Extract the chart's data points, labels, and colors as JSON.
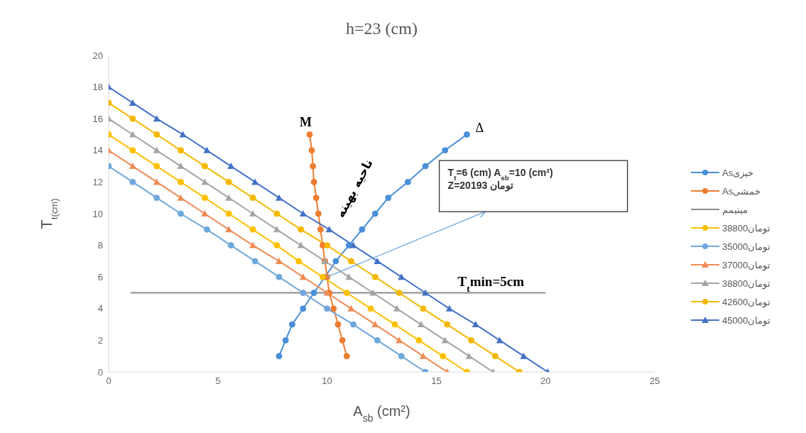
{
  "chart_data": {
    "type": "line",
    "title": "h=23 (cm)",
    "xlabel": "A$_{sb}$ (cm²)",
    "ylabel": "T$_{t(cm)}$",
    "xlim": [
      0,
      25
    ],
    "xticks": [
      0,
      5,
      10,
      15,
      20,
      25
    ],
    "ylim": [
      0,
      20
    ],
    "yticks": [
      0,
      2,
      4,
      6,
      8,
      10,
      12,
      14,
      16,
      18,
      20
    ],
    "grid": false,
    "legend": "right",
    "series": [
      {
        "name": "Asخیزی",
        "color": "#4a8fd8",
        "marker": "circle",
        "x": [
          7.8,
          8.1,
          8.4,
          8.9,
          9.4,
          9.9,
          10.4,
          11.0,
          11.6,
          12.2,
          12.8,
          13.7,
          14.5,
          15.4,
          16.4
        ],
        "values": [
          1,
          2,
          3,
          4,
          5,
          6,
          7,
          8,
          9,
          10,
          11,
          12,
          13,
          14,
          15
        ]
      },
      {
        "name": "Asخمشی",
        "color": "#ed7d31",
        "marker": "circle",
        "x": [
          10.9,
          10.7,
          10.5,
          10.3,
          10.1,
          10.0,
          9.9,
          9.8,
          9.7,
          9.6,
          9.5,
          9.4,
          9.35,
          9.3,
          9.2
        ],
        "values": [
          1,
          2,
          3,
          4,
          5,
          6,
          7,
          8,
          9,
          10,
          11,
          12,
          13,
          14,
          15
        ]
      },
      {
        "name": "مینیمم",
        "color": "#8c8c8c",
        "marker": "none",
        "x": [
          1,
          20
        ],
        "values": [
          5,
          5
        ]
      },
      {
        "name": "38800تومان",
        "color": "#ffc000",
        "marker": "circle",
        "x": [
          0,
          1.1,
          2.2,
          3.3,
          4.4,
          5.5,
          6.6,
          7.7,
          8.7,
          9.8,
          10.9,
          12.0,
          13.1,
          14.2,
          15.3,
          16.4
        ],
        "values": [
          15,
          14,
          13,
          12,
          11,
          10,
          9,
          8,
          7,
          6,
          5,
          4,
          3,
          2,
          1,
          0
        ]
      },
      {
        "name": "35000تومان",
        "color": "#6fa8dc",
        "marker": "circle",
        "x": [
          0,
          1.1,
          2.2,
          3.3,
          4.5,
          5.6,
          6.7,
          7.8,
          8.9,
          10.0,
          11.2,
          12.3,
          13.4,
          14.5
        ],
        "values": [
          13,
          12,
          11,
          10,
          9,
          8,
          7,
          6,
          5,
          4,
          3,
          2,
          1,
          0
        ]
      },
      {
        "name": "37000تومان",
        "color": "#f08c55",
        "marker": "triangle",
        "x": [
          0,
          1.1,
          2.2,
          3.3,
          4.4,
          5.5,
          6.6,
          7.8,
          8.9,
          10.0,
          11.1,
          12.2,
          13.3,
          14.4,
          15.5
        ],
        "values": [
          14,
          13,
          12,
          11,
          10,
          9,
          8,
          7,
          6,
          5,
          4,
          3,
          2,
          1,
          0
        ]
      },
      {
        "name": "38800تومان",
        "color": "#a5a5a5",
        "marker": "triangle",
        "x": [
          0,
          1.1,
          2.2,
          3.3,
          4.4,
          5.5,
          6.6,
          7.7,
          8.8,
          9.9,
          11.0,
          12.1,
          13.2,
          14.3,
          15.4,
          16.5,
          17.6
        ],
        "values": [
          16,
          15,
          14,
          13,
          12,
          11,
          10,
          9,
          8,
          7,
          6,
          5,
          4,
          3,
          2,
          1,
          0
        ]
      },
      {
        "name": "42600تومان",
        "color": "#f5b800",
        "marker": "circle",
        "x": [
          0,
          1.1,
          2.2,
          3.3,
          4.4,
          5.5,
          6.6,
          7.7,
          8.8,
          10.0,
          11.1,
          12.2,
          13.3,
          14.4,
          15.5,
          16.6,
          17.7,
          18.8
        ],
        "values": [
          17,
          16,
          15,
          14,
          13,
          12,
          11,
          10,
          9,
          8,
          7,
          6,
          5,
          4,
          3,
          2,
          1,
          0
        ]
      },
      {
        "name": "45000تومان",
        "color": "#4472c4",
        "marker": "triangle",
        "x": [
          0,
          1.1,
          2.2,
          3.4,
          4.5,
          5.6,
          6.7,
          7.8,
          8.9,
          10.1,
          11.2,
          12.3,
          13.4,
          14.5,
          15.6,
          16.8,
          17.9,
          19.0,
          20.1
        ],
        "values": [
          18,
          17,
          16,
          15,
          14,
          13,
          12,
          11,
          10,
          9,
          8,
          7,
          6,
          5,
          4,
          3,
          2,
          1,
          0
        ]
      }
    ],
    "annotations": [
      {
        "text": "M",
        "x": 9.2,
        "y": 15
      },
      {
        "text": "Δ",
        "x": 16.4,
        "y": 15
      },
      "ناحیه بهینه",
      {
        "text": "T$_{t}$min=5cm",
        "x": 17.5,
        "y": 5
      },
      "T$_{t}$=6 (cm) A$_{sb}$=10 (cm²)\nZ=20193 تومان"
    ]
  }
}
